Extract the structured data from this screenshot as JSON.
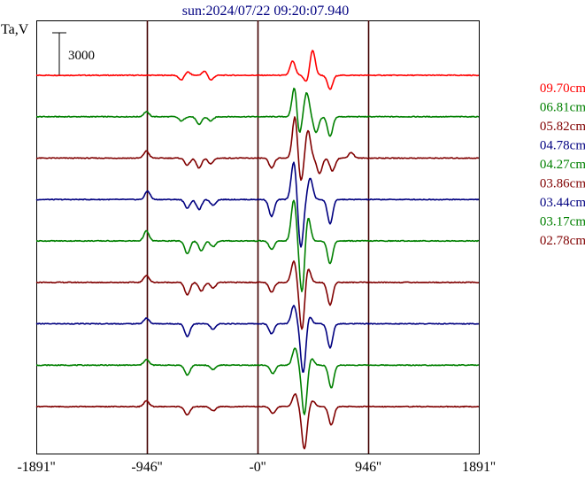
{
  "chart_data": {
    "type": "line",
    "title": "sun:2024/07/22 09:20:07.940",
    "ylabel": "Ta,V",
    "scale_bar_label": "3000",
    "scale_bar_value": 3000,
    "x_ticks": [
      {
        "value": -1891,
        "label": "-1891''"
      },
      {
        "value": -946,
        "label": "-946''"
      },
      {
        "value": 0,
        "label": "-0''"
      },
      {
        "value": 946,
        "label": "946''"
      },
      {
        "value": 1891,
        "label": "1891''"
      }
    ],
    "xlim": [
      -1891,
      1891
    ],
    "vertical_lines": [
      -946,
      0,
      946
    ],
    "grid": false,
    "legend_position": "right",
    "series": [
      {
        "name": "09.70cm",
        "color": "#ff0000",
        "peaks": [
          [
            -650,
            -350
          ],
          [
            -600,
            250
          ],
          [
            -450,
            300
          ],
          [
            -400,
            -350
          ],
          [
            300,
            1000
          ],
          [
            420,
            -500
          ],
          [
            470,
            1800
          ],
          [
            620,
            -1000
          ]
        ]
      },
      {
        "name": "06.81cm",
        "color": "#008000",
        "peaks": [
          [
            -950,
            350
          ],
          [
            -650,
            -300
          ],
          [
            -500,
            -550
          ],
          [
            -400,
            -300
          ],
          [
            320,
            2600
          ],
          [
            350,
            -1800
          ],
          [
            420,
            1700
          ],
          [
            500,
            -1100
          ],
          [
            620,
            -1400
          ]
        ]
      },
      {
        "name": "05.82cm",
        "color": "#800000",
        "peaks": [
          [
            -950,
            500
          ],
          [
            -600,
            -500
          ],
          [
            -500,
            -700
          ],
          [
            -400,
            -400
          ],
          [
            120,
            -700
          ],
          [
            320,
            3000
          ],
          [
            370,
            -1800
          ],
          [
            430,
            2000
          ],
          [
            530,
            -1100
          ],
          [
            640,
            -900
          ],
          [
            800,
            400
          ]
        ]
      },
      {
        "name": "04.78cm",
        "color": "#000080",
        "peaks": [
          [
            -940,
            600
          ],
          [
            -600,
            -600
          ],
          [
            -500,
            -700
          ],
          [
            -380,
            -400
          ],
          [
            120,
            -1200
          ],
          [
            310,
            2700
          ],
          [
            370,
            -3400
          ],
          [
            450,
            1500
          ],
          [
            620,
            -1700
          ]
        ]
      },
      {
        "name": "04.27cm",
        "color": "#008000",
        "peaks": [
          [
            -950,
            700
          ],
          [
            -600,
            -900
          ],
          [
            -480,
            -700
          ],
          [
            -380,
            -400
          ],
          [
            120,
            -600
          ],
          [
            310,
            2900
          ],
          [
            380,
            -3700
          ],
          [
            430,
            1800
          ],
          [
            620,
            -1600
          ]
        ]
      },
      {
        "name": "03.86cm",
        "color": "#800000",
        "peaks": [
          [
            -950,
            500
          ],
          [
            -600,
            -900
          ],
          [
            -480,
            -600
          ],
          [
            -380,
            -400
          ],
          [
            120,
            -700
          ],
          [
            310,
            1500
          ],
          [
            380,
            -3400
          ],
          [
            430,
            1100
          ],
          [
            620,
            -1600
          ]
        ]
      },
      {
        "name": "03.44cm",
        "color": "#000080",
        "peaks": [
          [
            -950,
            400
          ],
          [
            -600,
            -900
          ],
          [
            -380,
            -400
          ],
          [
            120,
            -700
          ],
          [
            310,
            1300
          ],
          [
            390,
            -3500
          ],
          [
            440,
            600
          ],
          [
            620,
            -1700
          ]
        ]
      },
      {
        "name": "03.17cm",
        "color": "#008000",
        "peaks": [
          [
            -950,
            400
          ],
          [
            -600,
            -700
          ],
          [
            -380,
            -300
          ],
          [
            130,
            -600
          ],
          [
            320,
            1200
          ],
          [
            400,
            -3500
          ],
          [
            460,
            500
          ],
          [
            630,
            -1600
          ]
        ]
      },
      {
        "name": "02.78cm",
        "color": "#800000",
        "peaks": [
          [
            -950,
            400
          ],
          [
            -600,
            -600
          ],
          [
            -380,
            -300
          ],
          [
            130,
            -500
          ],
          [
            320,
            900
          ],
          [
            400,
            -3000
          ],
          [
            470,
            400
          ],
          [
            630,
            -1300
          ]
        ]
      }
    ]
  }
}
